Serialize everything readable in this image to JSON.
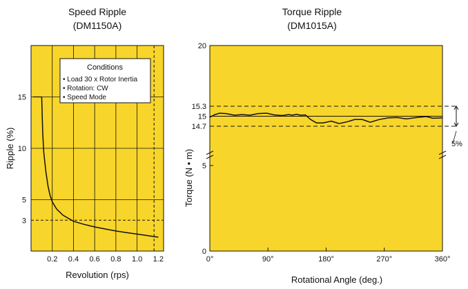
{
  "colors": {
    "plot_bg": "#f7d52a",
    "line": "#111111",
    "page_bg": "#ffffff"
  },
  "chart_data": [
    {
      "type": "line",
      "title": "Speed Ripple",
      "subtitle": "(DM1150A)",
      "xlabel": "Revolution (rps)",
      "ylabel": "Ripple (%)",
      "xlim": [
        0,
        1.25
      ],
      "ylim": [
        0,
        20
      ],
      "xticks": [
        "0.2",
        "0.4",
        "0.6",
        "0.8",
        "1.0",
        "1.2"
      ],
      "xtick_values": [
        0.2,
        0.4,
        0.6,
        0.8,
        1.0,
        1.2
      ],
      "yticks": [
        "3",
        "5",
        "10",
        "15"
      ],
      "ytick_values": [
        3,
        5,
        10,
        15
      ],
      "grid": true,
      "series": [
        {
          "x": [
            0.1,
            0.105,
            0.11,
            0.12,
            0.14,
            0.16,
            0.18,
            0.2,
            0.24,
            0.3,
            0.4,
            0.5,
            0.6,
            0.7,
            0.8,
            0.9,
            1.0,
            1.1,
            1.2
          ],
          "y": [
            15,
            13.3,
            11.5,
            9.6,
            7.7,
            6.3,
            5.4,
            4.8,
            4.1,
            3.5,
            2.9,
            2.6,
            2.35,
            2.15,
            1.95,
            1.8,
            1.65,
            1.5,
            1.35
          ]
        }
      ],
      "reference_lines": [
        {
          "axis": "y",
          "value": 3,
          "style": "dashed"
        },
        {
          "axis": "x",
          "value": 1.16,
          "style": "dashed"
        }
      ],
      "legend_box": {
        "title": "Conditions",
        "items": [
          "• Load 30 x Rotor Inertia",
          "• Rotation: CW",
          "• Speed Mode"
        ],
        "placement": "top-right"
      }
    },
    {
      "type": "line",
      "title": "Torque Ripple",
      "subtitle": "(DM1015A)",
      "xlabel": "Rotational Angle (deg.)",
      "ylabel": "Torque (N • m)",
      "xlim": [
        0,
        360
      ],
      "xticks": [
        "0°",
        "90°",
        "180°",
        "270°",
        "360°"
      ],
      "xtick_values": [
        0,
        90,
        180,
        270,
        360
      ],
      "yticks": [
        "0",
        "5",
        "14.7",
        "15",
        "15.3",
        "20"
      ],
      "axis_break": "between 5 and 14.7",
      "grid": false,
      "series": [
        {
          "x": [
            0,
            8,
            15,
            25,
            38,
            50,
            62,
            75,
            88,
            100,
            112,
            122,
            128,
            134,
            140,
            148,
            156,
            165,
            175,
            188,
            200,
            212,
            224,
            236,
            248,
            262,
            276,
            290,
            304,
            320,
            335,
            345,
            360
          ],
          "y": [
            14.97,
            15.05,
            15.09,
            15.08,
            15.03,
            15.05,
            15.03,
            15.08,
            15.09,
            15.04,
            15.02,
            15.05,
            15.03,
            15.06,
            15.03,
            15.04,
            14.9,
            14.8,
            14.8,
            14.85,
            14.78,
            14.83,
            14.9,
            14.9,
            14.82,
            14.9,
            14.95,
            14.96,
            14.92,
            14.96,
            14.99,
            14.94,
            14.95
          ]
        }
      ],
      "reference_lines": [
        {
          "axis": "y",
          "value": 15.3,
          "style": "dashed"
        },
        {
          "axis": "y",
          "value": 15,
          "style": "solid"
        },
        {
          "axis": "y",
          "value": 14.7,
          "style": "dashed"
        }
      ],
      "annotation": "5%"
    }
  ]
}
